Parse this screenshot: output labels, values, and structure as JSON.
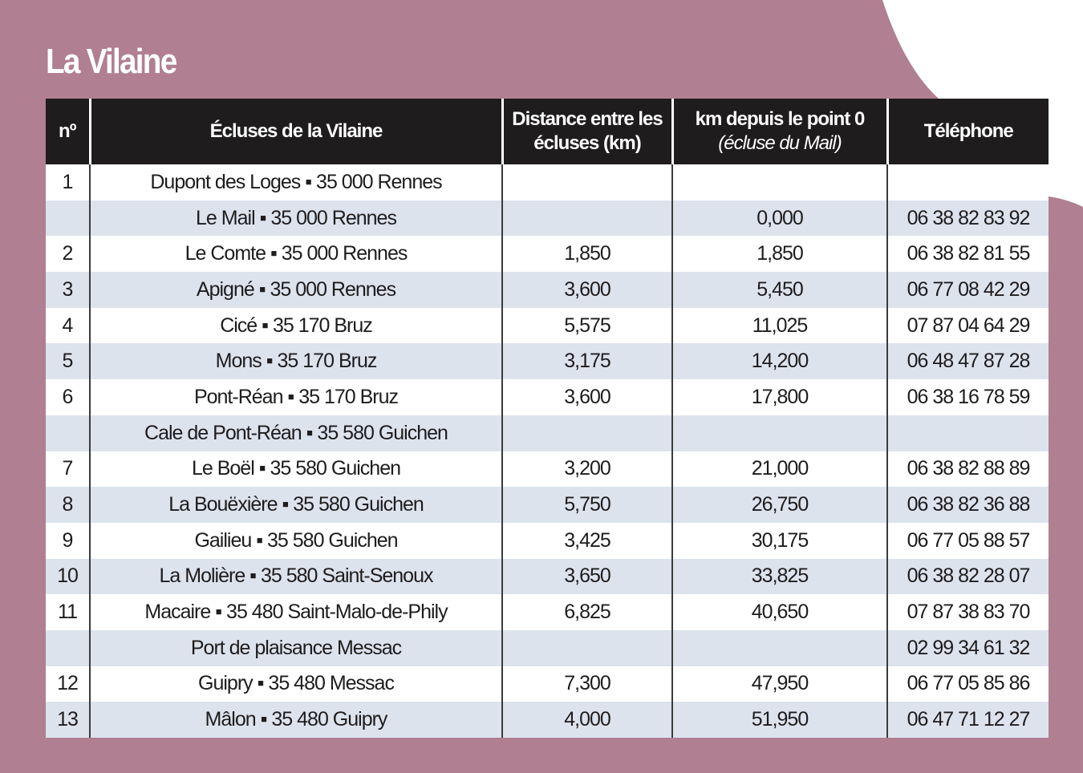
{
  "header": {
    "title": "La Vilaine"
  },
  "table": {
    "columns": [
      "nº",
      "Écluses de la Vilaine",
      "Distance entre les écluses (km)",
      {
        "main": "km depuis le point 0",
        "sub": "(écluse du Mail)"
      },
      "Téléphone"
    ],
    "rows": [
      [
        "1",
        "Dupont des Loges ▪ 35 000 Rennes",
        null,
        null,
        null
      ],
      [
        null,
        "Le Mail ▪ 35 000 Rennes",
        null,
        "0,000",
        "06 38 82 83 92"
      ],
      [
        "2",
        "Le Comte ▪ 35 000 Rennes",
        "1,850",
        "1,850",
        "06 38 82 81 55"
      ],
      [
        "3",
        "Apigné ▪ 35 000 Rennes",
        "3,600",
        "5,450",
        "06 77 08 42 29"
      ],
      [
        "4",
        "Cicé ▪ 35 170 Bruz",
        "5,575",
        "11,025",
        "07 87 04 64 29"
      ],
      [
        "5",
        "Mons ▪ 35 170 Bruz",
        "3,175",
        "14,200",
        "06 48 47 87 28"
      ],
      [
        "6",
        "Pont-Réan ▪ 35 170 Bruz",
        "3,600",
        "17,800",
        "06 38 16 78 59"
      ],
      [
        null,
        "Cale de Pont-Réan ▪ 35 580 Guichen",
        null,
        null,
        null
      ],
      [
        "7",
        "Le Boël ▪ 35 580 Guichen",
        "3,200",
        "21,000",
        "06 38 82 88 89"
      ],
      [
        "8",
        "La Bouëxière ▪ 35 580 Guichen",
        "5,750",
        "26,750",
        "06 38 82 36 88"
      ],
      [
        "9",
        "Gailieu ▪ 35 580 Guichen",
        "3,425",
        "30,175",
        "06 77 05 88 57"
      ],
      [
        "10",
        "La Molière ▪ 35 580 Saint-Senoux",
        "3,650",
        "33,825",
        "06 38 82 28 07"
      ],
      [
        "11",
        "Macaire ▪ 35 480 Saint-Malo-de-Phily",
        "6,825",
        "40,650",
        "07 87 38 83 70"
      ],
      [
        null,
        "Port de plaisance Messac",
        null,
        null,
        "02 99 34 61 32"
      ],
      [
        "12",
        "Guipry ▪ 35 480 Messac",
        "7,300",
        "47,950",
        "06 77 05 85 86"
      ],
      [
        "13",
        "Mâlon ▪ 35 480 Guipry",
        "4,000",
        "51,950",
        "06 47 71 12 27"
      ]
    ]
  }
}
